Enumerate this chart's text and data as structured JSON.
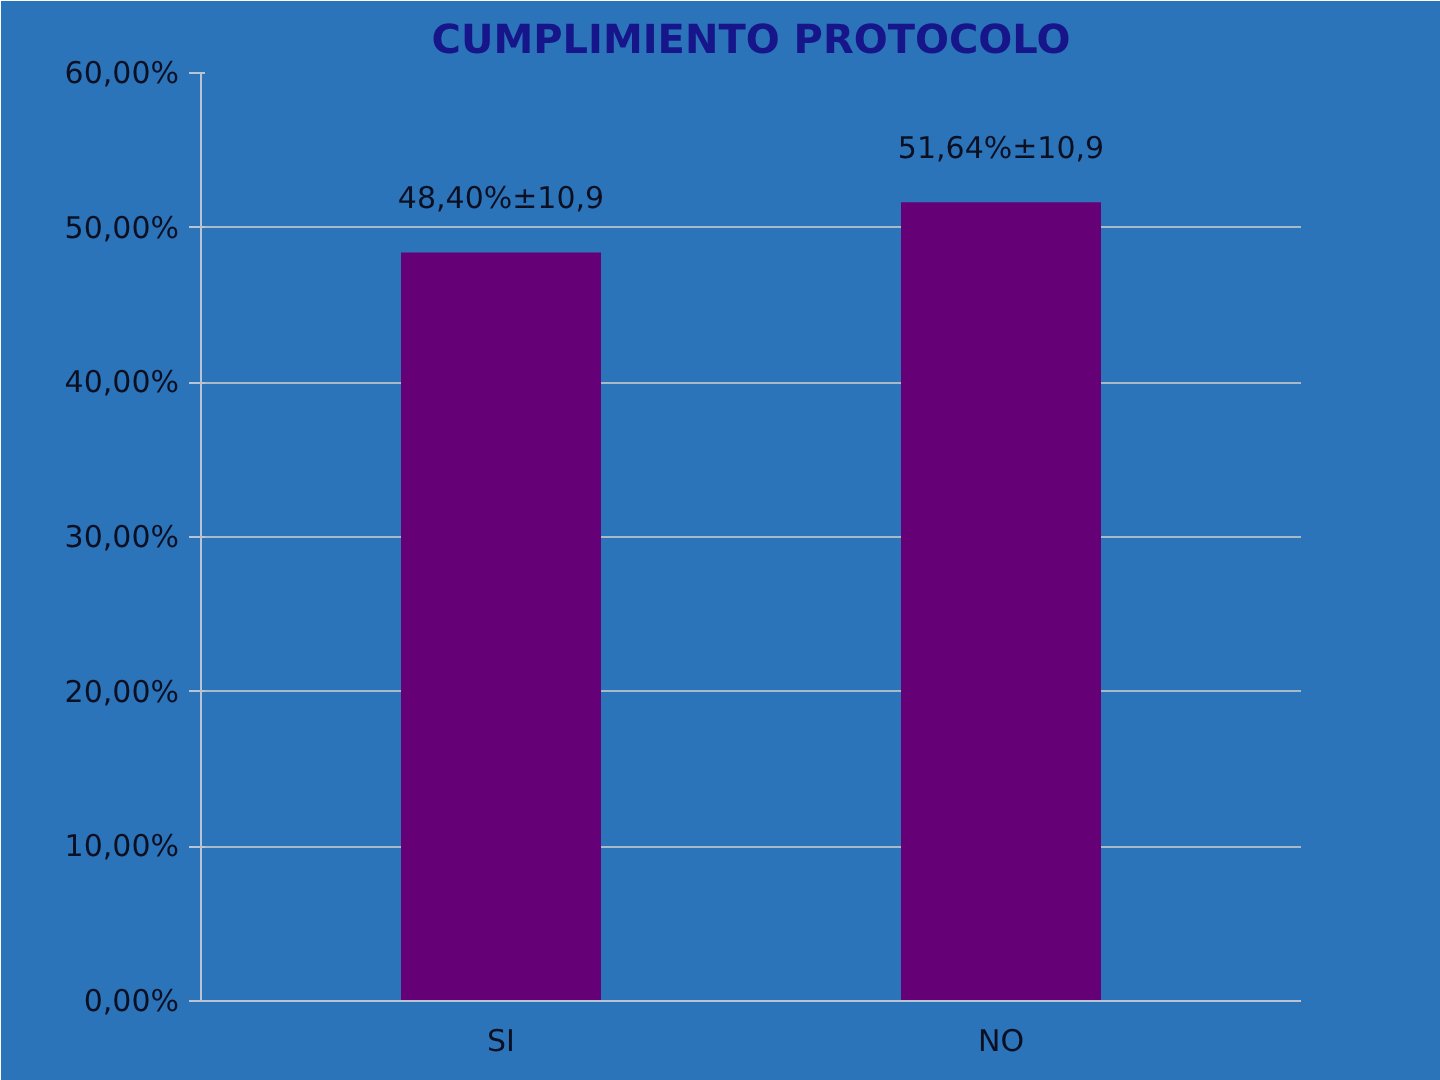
{
  "chart_data": {
    "type": "bar",
    "title": "CUMPLIMIENTO PROTOCOLO",
    "categories": [
      "SI",
      "NO"
    ],
    "values": [
      48.4,
      51.64
    ],
    "color": "#660077",
    "value_labels": [
      "48,40%±10,9",
      "51,64%±10,9"
    ],
    "ylim": [
      0,
      60
    ],
    "yticks": [
      {
        "value": 0,
        "label": "0,00%"
      },
      {
        "value": 10,
        "label": "10,00%"
      },
      {
        "value": 20,
        "label": "20,00%"
      },
      {
        "value": 30,
        "label": "30,00%"
      },
      {
        "value": 40,
        "label": "40,00%"
      },
      {
        "value": 50,
        "label": "50,00%"
      },
      {
        "value": 60,
        "label": "60,00%"
      }
    ],
    "grid": "y"
  }
}
